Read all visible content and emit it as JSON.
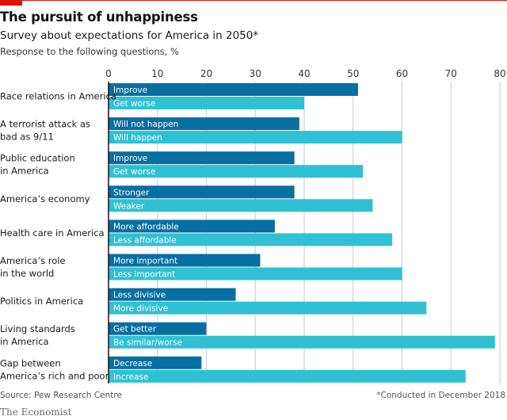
{
  "header": {
    "title": "The pursuit of unhappiness",
    "subtitle": "Survey about expectations for America in 2050*",
    "unit_note": "Response to the following questions, %"
  },
  "footer": {
    "source": "Source: Pew Research Centre",
    "footnote": "*Conducted in December 2018",
    "brand": "The Economist"
  },
  "colors": {
    "accent_red": "#e3120b",
    "series_dark": "#076fa1",
    "series_light": "#2fc1d3",
    "gridline": "#c9d3dc"
  },
  "chart_data": {
    "type": "bar",
    "orientation": "horizontal",
    "title": "The pursuit of unhappiness",
    "subtitle": "Survey about expectations for America in 2050*",
    "xlabel": "Response to the following questions, %",
    "ylabel": "",
    "xlim": [
      0,
      80
    ],
    "xticks": [
      0,
      10,
      20,
      30,
      40,
      50,
      60,
      70,
      80
    ],
    "grid": true,
    "legend": "inline bar labels",
    "categories": [
      {
        "label_lines": [
          "Race relations in America"
        ],
        "bars": [
          {
            "label": "Improve",
            "value": 51,
            "series": "dark"
          },
          {
            "label": "Get worse",
            "value": 40,
            "series": "light"
          }
        ]
      },
      {
        "label_lines": [
          "A terrorist attack as",
          "bad as 9/11"
        ],
        "bars": [
          {
            "label": "Will not happen",
            "value": 39,
            "series": "dark"
          },
          {
            "label": "Will happen",
            "value": 60,
            "series": "light"
          }
        ]
      },
      {
        "label_lines": [
          "Public education",
          "in America"
        ],
        "bars": [
          {
            "label": "Improve",
            "value": 38,
            "series": "dark"
          },
          {
            "label": "Get worse",
            "value": 52,
            "series": "light"
          }
        ]
      },
      {
        "label_lines": [
          "America’s economy"
        ],
        "bars": [
          {
            "label": "Stronger",
            "value": 38,
            "series": "dark"
          },
          {
            "label": "Weaker",
            "value": 54,
            "series": "light"
          }
        ]
      },
      {
        "label_lines": [
          "Health care in America"
        ],
        "bars": [
          {
            "label": "More affordable",
            "value": 34,
            "series": "dark"
          },
          {
            "label": "Less affordable",
            "value": 58,
            "series": "light"
          }
        ]
      },
      {
        "label_lines": [
          "America’s role",
          "in the world"
        ],
        "bars": [
          {
            "label": "More important",
            "value": 31,
            "series": "dark"
          },
          {
            "label": "Less important",
            "value": 60,
            "series": "light"
          }
        ]
      },
      {
        "label_lines": [
          "Politics in America"
        ],
        "bars": [
          {
            "label": "Less divisive",
            "value": 26,
            "series": "dark"
          },
          {
            "label": "More divisive",
            "value": 65,
            "series": "light"
          }
        ]
      },
      {
        "label_lines": [
          "Living standards",
          "in America"
        ],
        "bars": [
          {
            "label": "Get better",
            "value": 20,
            "series": "dark"
          },
          {
            "label": "Be similar/worse",
            "value": 79,
            "series": "light"
          }
        ]
      },
      {
        "label_lines": [
          "Gap between",
          "America’s rich and poor"
        ],
        "bars": [
          {
            "label": "Decrease",
            "value": 19,
            "series": "dark"
          },
          {
            "label": "Increase",
            "value": 73,
            "series": "light"
          }
        ]
      }
    ]
  }
}
